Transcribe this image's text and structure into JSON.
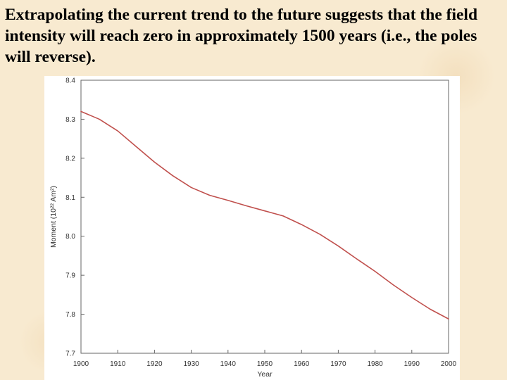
{
  "caption": "Extrapolating the current trend to the future suggests that the field intensity will reach zero in approximately 1500 years (i.e., the poles will reverse).",
  "chart_data": {
    "type": "line",
    "title": "",
    "xlabel": "Year",
    "ylabel": "Moment (10²² Am²)",
    "xlim": [
      1900,
      2000
    ],
    "ylim": [
      7.7,
      8.4
    ],
    "xticks": [
      "1900",
      "1910",
      "1920",
      "1930",
      "1940",
      "1950",
      "1960",
      "1970",
      "1980",
      "1990",
      "2000"
    ],
    "yticks": [
      "7.7",
      "7.8",
      "7.9",
      "8.0",
      "8.1",
      "8.2",
      "8.3",
      "8.4"
    ],
    "grid": false,
    "line_color": "#c0504d",
    "series": [
      {
        "name": "",
        "x": [
          1900,
          1905,
          1910,
          1915,
          1920,
          1925,
          1930,
          1935,
          1940,
          1945,
          1950,
          1955,
          1960,
          1965,
          1970,
          1975,
          1980,
          1985,
          1990,
          1995,
          2000
        ],
        "y": [
          8.32,
          8.3,
          8.27,
          8.23,
          8.19,
          8.155,
          8.125,
          8.105,
          8.092,
          8.078,
          8.065,
          8.052,
          8.03,
          8.005,
          7.975,
          7.942,
          7.91,
          7.875,
          7.843,
          7.813,
          7.788
        ]
      }
    ]
  }
}
